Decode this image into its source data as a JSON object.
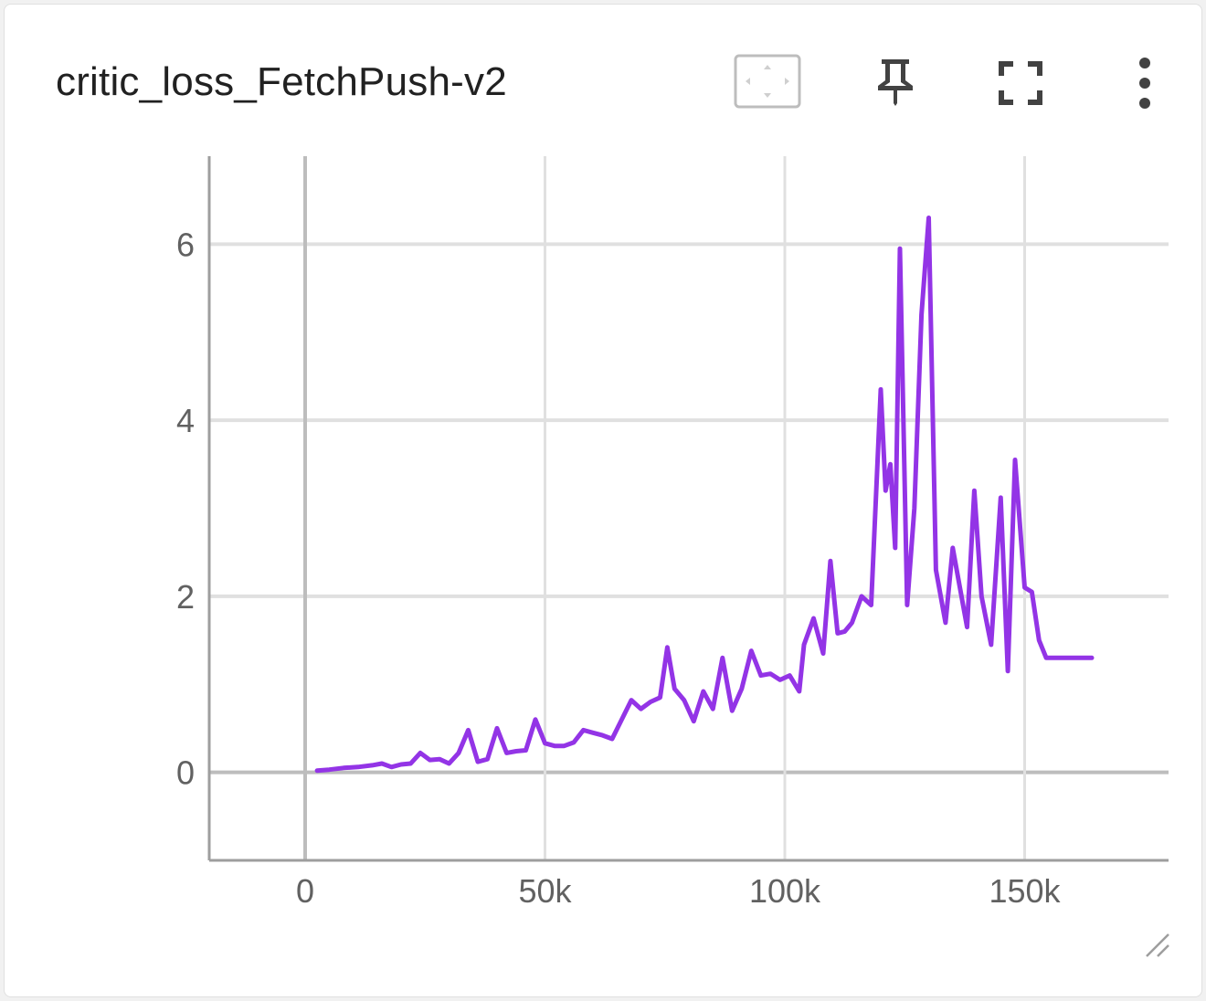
{
  "card": {
    "title": "critic_loss_FetchPush-v2"
  },
  "toolbar": {
    "icons": [
      "fit-domain-icon",
      "pin-icon",
      "fullscreen-icon",
      "more-vert-icon"
    ]
  },
  "colors": {
    "series": "#9334e6",
    "grid": "#e0e0e0",
    "axis": "#9e9e9e",
    "zero_line": "#bdbdbd"
  },
  "chart_data": {
    "type": "line",
    "title": "critic_loss_FetchPush-v2",
    "xlabel": "",
    "ylabel": "",
    "xlim": [
      -20000,
      180000
    ],
    "ylim": [
      -1,
      7
    ],
    "x_ticks": [
      0,
      50000,
      100000,
      150000
    ],
    "x_tick_labels": [
      "0",
      "50k",
      "100k",
      "150k"
    ],
    "y_ticks": [
      0,
      2,
      4,
      6
    ],
    "y_tick_labels": [
      "0",
      "2",
      "4",
      "6"
    ],
    "grid": true,
    "legend": "none",
    "series": [
      {
        "x": [
          2500,
          5000,
          8000,
          11000,
          14000,
          16000,
          18000,
          20000,
          22000,
          24000,
          26000,
          28000,
          30000,
          32000,
          34000,
          36000,
          38000,
          40000,
          42000,
          44000,
          46000,
          48000,
          50000,
          52000,
          54000,
          56000,
          58000,
          60000,
          62000,
          64000,
          66000,
          68000,
          70000,
          72000,
          74000,
          75500,
          77000,
          79000,
          81000,
          83000,
          85000,
          87000,
          89000,
          91000,
          93000,
          95000,
          97000,
          99000,
          101000,
          103000,
          104000,
          106000,
          108000,
          109500,
          111000,
          112500,
          114000,
          116000,
          118000,
          120000,
          121000,
          122000,
          123000,
          124000,
          125500,
          127000,
          128500,
          130000,
          131500,
          133500,
          135000,
          136500,
          138000,
          139500,
          141000,
          143000,
          145000,
          146500,
          148000,
          150000,
          151500,
          153000,
          154500,
          156000,
          157500,
          159000,
          161000,
          162500,
          164000
        ],
        "y": [
          0.02,
          0.03,
          0.05,
          0.06,
          0.08,
          0.1,
          0.06,
          0.09,
          0.1,
          0.22,
          0.14,
          0.15,
          0.1,
          0.22,
          0.48,
          0.12,
          0.15,
          0.5,
          0.22,
          0.24,
          0.25,
          0.6,
          0.33,
          0.3,
          0.3,
          0.34,
          0.48,
          0.45,
          0.42,
          0.38,
          0.6,
          0.82,
          0.72,
          0.8,
          0.85,
          1.42,
          0.95,
          0.82,
          0.58,
          0.92,
          0.72,
          1.3,
          0.7,
          0.95,
          1.38,
          1.1,
          1.12,
          1.05,
          1.1,
          0.92,
          1.45,
          1.75,
          1.35,
          2.4,
          1.58,
          1.6,
          1.7,
          2.0,
          1.9,
          4.35,
          3.2,
          3.5,
          2.55,
          5.95,
          1.9,
          3.0,
          5.2,
          6.3,
          2.3,
          1.7,
          2.55,
          2.1,
          1.65,
          3.2,
          2.0,
          1.45,
          3.12,
          1.15,
          3.55,
          2.1,
          2.05,
          1.5,
          1.3,
          1.3,
          1.3,
          1.3,
          1.3,
          1.3,
          1.3
        ]
      }
    ]
  }
}
